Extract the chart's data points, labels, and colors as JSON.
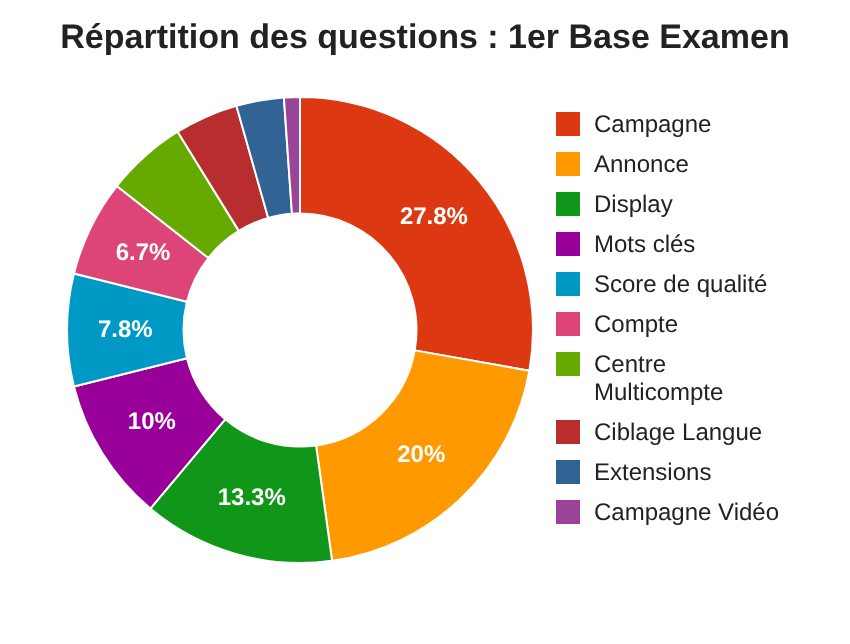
{
  "chart_data": {
    "type": "donut",
    "title": "Répartition des questions : 1er Base Examen",
    "categories": [
      "Campagne",
      "Annonce",
      "Display",
      "Mots clés",
      "Score de qualité",
      "Compte",
      "Centre Multicompte",
      "Ciblage Langue",
      "Extensions",
      "Campagne Vidéo"
    ],
    "values": [
      27.8,
      20,
      13.3,
      10,
      7.8,
      6.7,
      5.6,
      4.4,
      3.3,
      1.1
    ],
    "value_labels": [
      "27.8%",
      "20%",
      "13.3%",
      "10%",
      "7.8%",
      "6.7%",
      null,
      null,
      null,
      null
    ],
    "colors": [
      "#dc3912",
      "#ff9900",
      "#109618",
      "#990099",
      "#0099c6",
      "#dd4477",
      "#66aa00",
      "#b82e2e",
      "#316395",
      "#994499"
    ],
    "legend": "right"
  }
}
